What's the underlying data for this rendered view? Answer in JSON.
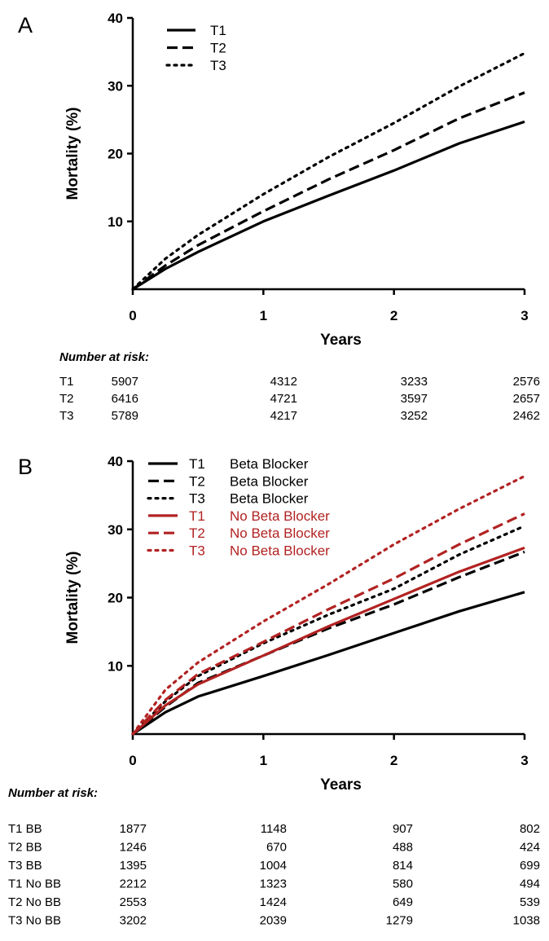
{
  "chart_data": [
    {
      "panel": "A",
      "type": "line",
      "xlabel": "Years",
      "ylabel": "Mortality (%)",
      "xlim": [
        0,
        3
      ],
      "ylim": [
        0,
        40
      ],
      "xticks": [
        "0",
        "1",
        "2",
        "3"
      ],
      "yticks": [
        "10",
        "20",
        "30",
        "40"
      ],
      "grid": false,
      "legend_position": "top-left",
      "series": [
        {
          "name": "T1",
          "name_extra": "",
          "color": "#000000",
          "dash": "solid",
          "x": [
            0,
            0.25,
            0.5,
            1,
            1.5,
            2,
            2.5,
            3
          ],
          "y": [
            0,
            3.0,
            5.5,
            10.0,
            13.8,
            17.5,
            21.5,
            24.7
          ]
        },
        {
          "name": "T2",
          "name_extra": "",
          "color": "#000000",
          "dash": "dashed",
          "x": [
            0,
            0.25,
            0.5,
            1,
            1.5,
            2,
            2.5,
            3
          ],
          "y": [
            0,
            3.5,
            6.5,
            11.5,
            16.2,
            20.5,
            25.2,
            29.0
          ]
        },
        {
          "name": "T3",
          "name_extra": "",
          "color": "#000000",
          "dash": "dotted",
          "x": [
            0,
            0.25,
            0.5,
            1,
            1.5,
            2,
            2.5,
            3
          ],
          "y": [
            0,
            4.5,
            8.0,
            14.0,
            19.5,
            24.5,
            29.9,
            34.8
          ]
        }
      ],
      "risk_table": {
        "title": "Number at risk:",
        "rows": [
          {
            "label": "T1",
            "values": [
              "5907",
              "4312",
              "3233",
              "2576"
            ]
          },
          {
            "label": "T2",
            "values": [
              "6416",
              "4721",
              "3597",
              "2657"
            ]
          },
          {
            "label": "T3",
            "values": [
              "5789",
              "4217",
              "3252",
              "2462"
            ]
          }
        ]
      }
    },
    {
      "panel": "B",
      "type": "line",
      "xlabel": "Years",
      "ylabel": "Mortality (%)",
      "xlim": [
        0,
        3
      ],
      "ylim": [
        0,
        40
      ],
      "xticks": [
        "0",
        "1",
        "2",
        "3"
      ],
      "yticks": [
        "10",
        "20",
        "30",
        "40"
      ],
      "grid": false,
      "legend_position": "top-left",
      "series": [
        {
          "name": "T1",
          "name_extra": "Beta Blocker",
          "color": "#000000",
          "dash": "solid",
          "x": [
            0,
            0.25,
            0.5,
            1,
            1.5,
            2,
            2.5,
            3
          ],
          "y": [
            0,
            3.2,
            5.5,
            8.5,
            11.6,
            14.8,
            18.0,
            20.8
          ]
        },
        {
          "name": "T2",
          "name_extra": "Beta Blocker",
          "color": "#000000",
          "dash": "dashed",
          "x": [
            0,
            0.25,
            0.5,
            1,
            1.5,
            2,
            2.5,
            3
          ],
          "y": [
            0,
            4.0,
            7.5,
            11.5,
            15.5,
            19.0,
            23.0,
            26.7
          ]
        },
        {
          "name": "T3",
          "name_extra": "Beta Blocker",
          "color": "#000000",
          "dash": "dotted",
          "x": [
            0,
            0.25,
            0.5,
            1,
            1.5,
            2,
            2.5,
            3
          ],
          "y": [
            0,
            4.8,
            8.5,
            13.3,
            17.5,
            21.3,
            26.3,
            30.5
          ]
        },
        {
          "name": "T1",
          "name_extra": "No Beta Blocker",
          "color": "#b22222",
          "dash": "solid",
          "x": [
            0,
            0.25,
            0.5,
            1,
            1.5,
            2,
            2.5,
            3
          ],
          "y": [
            0,
            4.2,
            7.3,
            11.5,
            15.8,
            19.8,
            23.8,
            27.3
          ]
        },
        {
          "name": "T2",
          "name_extra": "No Beta Blocker",
          "color": "#b22222",
          "dash": "dashed",
          "x": [
            0,
            0.25,
            0.5,
            1,
            1.5,
            2,
            2.5,
            3
          ],
          "y": [
            0,
            5.0,
            8.8,
            13.5,
            18.3,
            22.8,
            27.8,
            32.3
          ]
        },
        {
          "name": "T3",
          "name_extra": "No Beta Blocker",
          "color": "#b22222",
          "dash": "dotted",
          "x": [
            0,
            0.25,
            0.5,
            1,
            1.5,
            2,
            2.5,
            3
          ],
          "y": [
            0,
            6.5,
            10.5,
            16.5,
            22.0,
            27.8,
            33.0,
            37.8
          ]
        }
      ],
      "risk_table": {
        "title": "Number at risk:",
        "rows": [
          {
            "label": "T1 BB",
            "values": [
              "1877",
              "1148",
              "907",
              "802"
            ]
          },
          {
            "label": "T2 BB",
            "values": [
              "1246",
              "670",
              "488",
              "424"
            ]
          },
          {
            "label": "T3 BB",
            "values": [
              "1395",
              "1004",
              "814",
              "699"
            ]
          },
          {
            "label": "T1 No BB",
            "values": [
              "2212",
              "1323",
              "580",
              "494"
            ]
          },
          {
            "label": "T2 No BB",
            "values": [
              "2553",
              "1424",
              "649",
              "539"
            ]
          },
          {
            "label": "T3 No BB",
            "values": [
              "3202",
              "2039",
              "1279",
              "1038"
            ]
          }
        ]
      }
    }
  ]
}
